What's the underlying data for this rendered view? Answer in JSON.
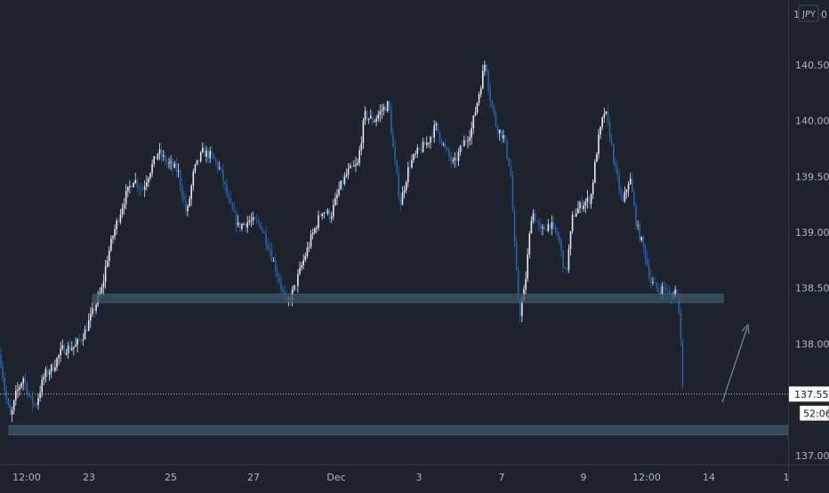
{
  "colors": {
    "background": "#1e222d",
    "axis_text": "#b2b5be",
    "candle_up": "#e6e8ee",
    "candle_down": "#2962a8",
    "zone_fill": "#3a5566",
    "price_tag_bg": "#ffffff",
    "price_tag_text": "#131722",
    "arrow": "#6f8d99"
  },
  "price_axis": {
    "currency_label": "JPY",
    "left_glyph": "1",
    "right_glyph": "0"
  },
  "chart_data": {
    "type": "candlestick",
    "instrument_quote_currency": "JPY",
    "x_ticks": [
      "12:00",
      "23",
      "25",
      "27",
      "Dec",
      "3",
      "7",
      "9",
      "12:00",
      "14",
      "1"
    ],
    "y_ticks": [
      "140.500",
      "140.000",
      "139.500",
      "139.000",
      "138.500",
      "138.000",
      "137.000"
    ],
    "ylim": [
      136.92,
      141.08
    ],
    "last_price": "137.551",
    "countdown": "52:06",
    "price_path": [
      [
        0,
        137.9
      ],
      [
        6,
        137.55
      ],
      [
        12,
        137.33
      ],
      [
        18,
        137.55
      ],
      [
        26,
        137.7
      ],
      [
        34,
        137.5
      ],
      [
        40,
        137.45
      ],
      [
        50,
        137.72
      ],
      [
        60,
        137.8
      ],
      [
        70,
        137.95
      ],
      [
        85,
        137.98
      ],
      [
        95,
        138.1
      ],
      [
        105,
        138.3
      ],
      [
        115,
        138.5
      ],
      [
        120,
        138.75
      ],
      [
        128,
        139.0
      ],
      [
        140,
        139.3
      ],
      [
        150,
        139.48
      ],
      [
        160,
        139.38
      ],
      [
        170,
        139.58
      ],
      [
        178,
        139.72
      ],
      [
        188,
        139.62
      ],
      [
        200,
        139.55
      ],
      [
        210,
        139.15
      ],
      [
        218,
        139.55
      ],
      [
        228,
        139.72
      ],
      [
        238,
        139.68
      ],
      [
        248,
        139.55
      ],
      [
        258,
        139.25
      ],
      [
        268,
        139.05
      ],
      [
        280,
        139.1
      ],
      [
        292,
        139.08
      ],
      [
        302,
        138.88
      ],
      [
        312,
        138.62
      ],
      [
        322,
        138.35
      ],
      [
        330,
        138.48
      ],
      [
        340,
        138.72
      ],
      [
        350,
        138.95
      ],
      [
        362,
        139.2
      ],
      [
        372,
        139.15
      ],
      [
        382,
        139.4
      ],
      [
        392,
        139.55
      ],
      [
        402,
        139.6
      ],
      [
        410,
        140.05
      ],
      [
        420,
        140.0
      ],
      [
        430,
        140.1
      ],
      [
        437,
        140.15
      ],
      [
        442,
        139.75
      ],
      [
        450,
        139.25
      ],
      [
        460,
        139.6
      ],
      [
        470,
        139.72
      ],
      [
        480,
        139.8
      ],
      [
        490,
        139.95
      ],
      [
        500,
        139.75
      ],
      [
        510,
        139.6
      ],
      [
        520,
        139.78
      ],
      [
        530,
        139.92
      ],
      [
        540,
        140.3
      ],
      [
        546,
        140.55
      ],
      [
        550,
        140.25
      ],
      [
        558,
        139.95
      ],
      [
        566,
        139.85
      ],
      [
        574,
        139.55
      ],
      [
        579,
        138.8
      ],
      [
        584,
        138.25
      ],
      [
        590,
        138.5
      ],
      [
        598,
        139.2
      ],
      [
        608,
        139.0
      ],
      [
        618,
        139.08
      ],
      [
        628,
        138.95
      ],
      [
        636,
        138.6
      ],
      [
        644,
        139.15
      ],
      [
        654,
        139.25
      ],
      [
        664,
        139.3
      ],
      [
        672,
        139.8
      ],
      [
        680,
        140.1
      ],
      [
        686,
        139.85
      ],
      [
        692,
        139.55
      ],
      [
        700,
        139.25
      ],
      [
        708,
        139.5
      ],
      [
        716,
        139.05
      ],
      [
        724,
        138.85
      ],
      [
        732,
        138.55
      ],
      [
        740,
        138.48
      ],
      [
        748,
        138.5
      ],
      [
        754,
        138.4
      ],
      [
        760,
        138.5
      ],
      [
        763,
        138.35
      ],
      [
        766,
        137.95
      ],
      [
        768,
        137.55
      ]
    ],
    "zones": [
      {
        "y_top": 138.445,
        "y_bottom": 138.37
      },
      {
        "y_top": 137.27,
        "y_bottom": 137.185
      }
    ]
  }
}
